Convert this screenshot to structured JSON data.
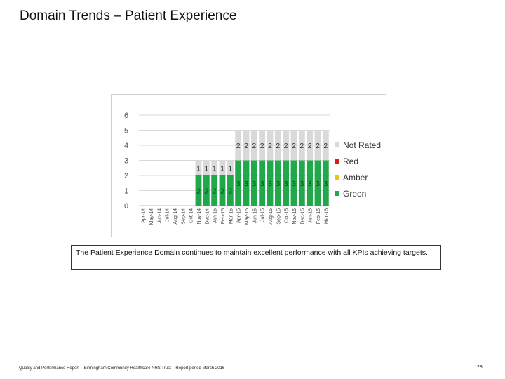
{
  "slide": {
    "title": "Domain Trends – Patient Experience",
    "caption": "The Patient Experience Domain continues to maintain excellent performance with all KPIs achieving targets.",
    "footer": "Quality and Performance Report – Birmingham Community Healthcare NHS Trust – Report period March 2016",
    "page_number": "28"
  },
  "colors": {
    "Not Rated": "#d9d9d9",
    "Red": "#e0190f",
    "Amber": "#f0c417",
    "Green": "#21a84a"
  },
  "chart_data": {
    "type": "bar",
    "stacked": true,
    "title": "",
    "xlabel": "",
    "ylabel": "",
    "ylim": [
      0,
      6
    ],
    "yticks": [
      0,
      1,
      2,
      3,
      4,
      5,
      6
    ],
    "grid": true,
    "legend_position": "right",
    "categories": [
      "Apr-14",
      "May-14",
      "Jun-14",
      "Jul-14",
      "Aug-14",
      "Sep-14",
      "Oct-14",
      "Nov-14",
      "Dec-14",
      "Jan-15",
      "Feb-15",
      "Mar-15",
      "Apr-15",
      "May-15",
      "Jun-15",
      "Jul-15",
      "Aug-15",
      "Sep-15",
      "Oct-15",
      "Nov-15",
      "Dec-15",
      "Jan-16",
      "Feb-16",
      "Mar-16"
    ],
    "series": [
      {
        "name": "Green",
        "values": [
          0,
          0,
          0,
          0,
          0,
          0,
          0,
          2,
          2,
          2,
          2,
          2,
          3,
          3,
          3,
          3,
          3,
          3,
          3,
          3,
          3,
          3,
          3,
          3
        ]
      },
      {
        "name": "Amber",
        "values": [
          0,
          0,
          0,
          0,
          0,
          0,
          0,
          0,
          0,
          0,
          0,
          0,
          0,
          0,
          0,
          0,
          0,
          0,
          0,
          0,
          0,
          0,
          0,
          0
        ]
      },
      {
        "name": "Red",
        "values": [
          0,
          0,
          0,
          0,
          0,
          0,
          0,
          0,
          0,
          0,
          0,
          0,
          0,
          0,
          0,
          0,
          0,
          0,
          0,
          0,
          0,
          0,
          0,
          0
        ]
      },
      {
        "name": "Not Rated",
        "values": [
          0,
          0,
          0,
          0,
          0,
          0,
          0,
          1,
          1,
          1,
          1,
          1,
          2,
          2,
          2,
          2,
          2,
          2,
          2,
          2,
          2,
          2,
          2,
          2
        ]
      }
    ],
    "legend": [
      "Not Rated",
      "Red",
      "Amber",
      "Green"
    ]
  }
}
